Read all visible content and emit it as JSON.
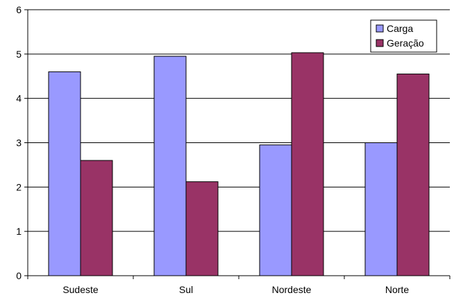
{
  "chart_data": {
    "type": "bar",
    "categories": [
      "Sudeste",
      "Sul",
      "Nordeste",
      "Norte"
    ],
    "series": [
      {
        "name": "Carga",
        "values": [
          4.6,
          4.95,
          2.95,
          3.0
        ],
        "color": "#9999ff"
      },
      {
        "name": "Geração",
        "values": [
          2.6,
          2.12,
          5.03,
          4.55
        ],
        "color": "#993366"
      }
    ],
    "ylim": [
      0,
      6
    ],
    "yticks": [
      0,
      1,
      2,
      3,
      4,
      5,
      6
    ],
    "grid": true,
    "legend": "top-right",
    "title": "",
    "xlabel": "",
    "ylabel": ""
  }
}
